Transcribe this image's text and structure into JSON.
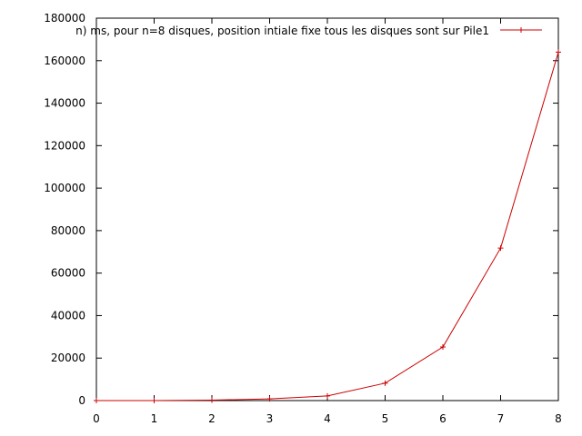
{
  "chart_data": {
    "type": "line",
    "title": "",
    "xlabel": "",
    "ylabel": "",
    "xlim": [
      0,
      8
    ],
    "ylim": [
      0,
      180000
    ],
    "x_ticks": [
      0,
      1,
      2,
      3,
      4,
      5,
      6,
      7,
      8
    ],
    "y_ticks": [
      0,
      20000,
      40000,
      60000,
      80000,
      100000,
      120000,
      140000,
      160000,
      180000
    ],
    "grid": false,
    "legend_position": "top-right",
    "series": [
      {
        "name": "n) ms, pour n=8 disques, position intiale fixe tous les disques sont sur Pile1",
        "color": "#cc0000",
        "marker": "plus",
        "x": [
          0,
          1,
          2,
          3,
          4,
          5,
          6,
          7,
          8
        ],
        "y": [
          0,
          0,
          200,
          800,
          2200,
          8200,
          25200,
          71800,
          164000
        ]
      }
    ]
  }
}
